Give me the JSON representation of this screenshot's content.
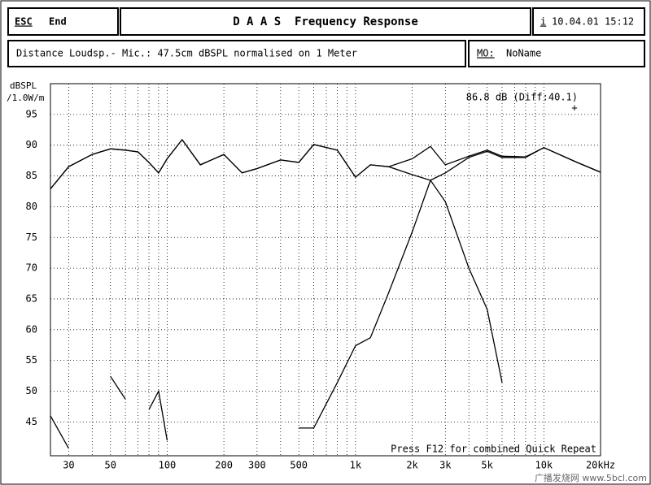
{
  "ui": {
    "esc": "ESC",
    "end": "End",
    "title": "D A A S  Frequency Response",
    "info": "i",
    "datetime": "10.04.01 15:12",
    "distance": "Distance Loudsp.- Mic.: 47.5cm dBSPL normalised on 1 Meter",
    "mo_label": "MO:",
    "mo_value": "NoName",
    "watermark": "广播发烧网 www.5bcl.com"
  },
  "chart_data": {
    "type": "line",
    "xscale": "log",
    "ylabel": "dBSPL",
    "ylabel2": "/1.0W/m",
    "annotation": "86.8 dB (Diff:40.1)",
    "cursor": "+",
    "footer": "Press F12 for combined Quick Repeat",
    "x": [
      24,
      30,
      40,
      50,
      60,
      70,
      80,
      90,
      100,
      120,
      150,
      200,
      250,
      300,
      400,
      500,
      600,
      800,
      1000,
      1200,
      1500,
      2000,
      2500,
      3000,
      4000,
      5000,
      6000,
      8000,
      10000,
      15000,
      20000
    ],
    "series": [
      {
        "color": "#000000",
        "values": [
          82.9,
          86.5,
          88.5,
          89.4,
          89.2,
          88.9,
          87.2,
          85.5,
          87.8,
          90.9,
          86.8,
          88.5,
          85.5,
          86.2,
          87.6,
          87.2,
          90.1,
          89.2,
          84.8,
          86.8,
          86.5,
          87.8,
          89.8,
          86.8,
          88.2,
          89.2,
          88.2,
          88.1,
          89.6,
          87.2,
          85.6
        ]
      },
      {
        "color": "#000000",
        "values": [
          82.9,
          86.5,
          88.5,
          89.4,
          89.2,
          88.9,
          87.2,
          85.5,
          87.8,
          90.9,
          86.8,
          88.5,
          85.5,
          86.2,
          87.6,
          87.2,
          90.1,
          89.2,
          84.8,
          86.8,
          86.5,
          85.2,
          84.3,
          80.8,
          70,
          63.3,
          51.4,
          null,
          null,
          null,
          null
        ]
      },
      {
        "color": "#000000",
        "values": [
          46,
          40.7,
          null,
          52.4,
          48.7,
          null,
          47,
          50,
          42,
          null,
          null,
          null,
          null,
          null,
          null,
          44,
          44,
          51.4,
          57.4,
          58.7,
          66,
          75.9,
          84.3,
          85.5,
          88,
          89,
          88,
          88,
          89.6,
          87.2,
          85.6
        ]
      }
    ],
    "xlim": [
      24,
      20000
    ],
    "ylim": [
      39.5,
      100
    ],
    "xticks": [
      30,
      50,
      100,
      200,
      300,
      500,
      {
        "value": 1000,
        "label": "1k"
      },
      {
        "value": 2000,
        "label": "2k"
      },
      {
        "value": 3000,
        "label": "3k"
      },
      {
        "value": 5000,
        "label": "5k"
      },
      {
        "value": 10000,
        "label": "10k"
      },
      {
        "value": 20000,
        "label": "20kHz"
      }
    ],
    "x_minor_ticks": [
      40,
      60,
      70,
      80,
      90,
      400,
      600,
      700,
      800,
      900,
      4000,
      6000,
      7000,
      8000,
      9000
    ],
    "yticks": [
      45,
      50,
      55,
      60,
      65,
      70,
      75,
      80,
      85,
      90,
      95
    ],
    "grid": true
  }
}
